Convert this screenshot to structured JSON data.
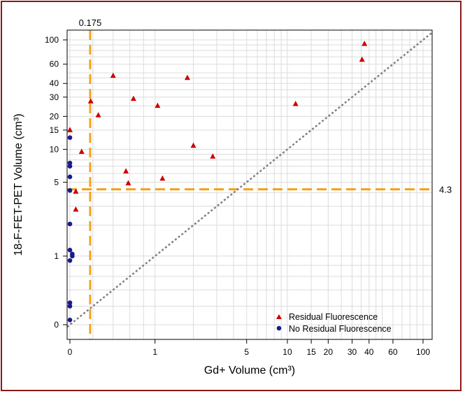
{
  "chart_data": {
    "type": "scatter",
    "title": "",
    "xlabel": "Gd+ Volume (cm³)",
    "ylabel": "18-F-FET-PET Volume (cm³)",
    "x_scale": "asinh-like (linear near 0, logarithmic above 1)",
    "y_scale": "asinh-like (linear near 0, logarithmic above 1)",
    "x_ticks": [
      {
        "value": 0,
        "label": "0"
      },
      {
        "value": 1,
        "label": "1"
      },
      {
        "value": 5,
        "label": "5"
      },
      {
        "value": 10,
        "label": "10"
      },
      {
        "value": 15,
        "label": "15"
      },
      {
        "value": 20,
        "label": "20"
      },
      {
        "value": 30,
        "label": "30"
      },
      {
        "value": 40,
        "label": "40"
      },
      {
        "value": 60,
        "label": "60"
      },
      {
        "value": 100,
        "label": "100"
      }
    ],
    "y_ticks": [
      {
        "value": 0,
        "label": "0"
      },
      {
        "value": 1,
        "label": "1"
      },
      {
        "value": 5,
        "label": "5"
      },
      {
        "value": 10,
        "label": "10"
      },
      {
        "value": 15,
        "label": "15"
      },
      {
        "value": 20,
        "label": "20"
      },
      {
        "value": 30,
        "label": "30"
      },
      {
        "value": 40,
        "label": "40"
      },
      {
        "value": 60,
        "label": "60"
      },
      {
        "value": 100,
        "label": "100"
      }
    ],
    "grid": true,
    "legend_position": "bottom-right",
    "series": [
      {
        "name": "Residual Fluorescence",
        "marker": "triangle",
        "color": "#cc0000",
        "points": [
          {
            "x": 0.0,
            "y": 15.0
          },
          {
            "x": 0.1,
            "y": 9.5
          },
          {
            "x": 0.05,
            "y": 4.1
          },
          {
            "x": 0.05,
            "y": 2.8
          },
          {
            "x": 0.18,
            "y": 27.5
          },
          {
            "x": 0.25,
            "y": 20.5
          },
          {
            "x": 0.4,
            "y": 47.0
          },
          {
            "x": 0.55,
            "y": 6.3
          },
          {
            "x": 0.58,
            "y": 4.9
          },
          {
            "x": 0.65,
            "y": 29.0
          },
          {
            "x": 1.05,
            "y": 25.0
          },
          {
            "x": 1.15,
            "y": 5.4
          },
          {
            "x": 1.8,
            "y": 45.0
          },
          {
            "x": 2.0,
            "y": 10.8
          },
          {
            "x": 2.8,
            "y": 8.6
          },
          {
            "x": 11.5,
            "y": 26.0
          },
          {
            "x": 35.5,
            "y": 66.0
          },
          {
            "x": 37.0,
            "y": 92.0
          }
        ]
      },
      {
        "name": "No Residual Fluorescence",
        "marker": "circle",
        "color": "#1a1a8c",
        "points": [
          {
            "x": 0.0,
            "y": 12.8
          },
          {
            "x": 0.0,
            "y": 7.5
          },
          {
            "x": 0.0,
            "y": 7.0
          },
          {
            "x": 0.0,
            "y": 5.6
          },
          {
            "x": 0.0,
            "y": 4.2
          },
          {
            "x": 0.0,
            "y": 2.05
          },
          {
            "x": 0.0,
            "y": 1.15
          },
          {
            "x": 0.02,
            "y": 1.05
          },
          {
            "x": 0.02,
            "y": 1.0
          },
          {
            "x": 0.0,
            "y": 0.9
          },
          {
            "x": 0.0,
            "y": 0.24
          },
          {
            "x": 0.0,
            "y": 0.2
          },
          {
            "x": 0.0,
            "y": 0.05
          }
        ]
      }
    ],
    "reference_lines": [
      {
        "type": "vertical",
        "value": 0.175,
        "label": "0.175",
        "color": "#f5a31a",
        "style": "dashed"
      },
      {
        "type": "horizontal",
        "value": 4.3,
        "label": "4.3",
        "color": "#f5a31a",
        "style": "dashed"
      },
      {
        "type": "identity",
        "color": "#808080",
        "style": "dotted"
      }
    ]
  }
}
